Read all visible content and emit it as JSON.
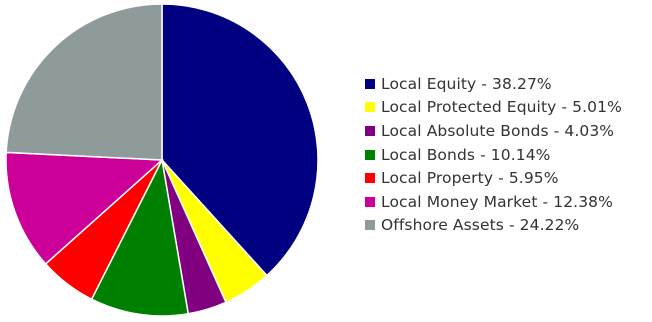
{
  "chart_data": {
    "type": "pie",
    "slices": [
      {
        "label": "Local Equity -  38.27%",
        "value": 38.27,
        "color": "#000080"
      },
      {
        "label": "Local Protected Equity - 5.01%",
        "value": 5.01,
        "color": "#ffff00"
      },
      {
        "label": "Local Absolute Bonds -  4.03%",
        "value": 4.03,
        "color": "#800080"
      },
      {
        "label": "Local Bonds -  10.14%",
        "value": 10.14,
        "color": "#008000"
      },
      {
        "label": "Local Property - 5.95%",
        "value": 5.95,
        "color": "#ff0000"
      },
      {
        "label": "Local Money Market -  12.38%",
        "value": 12.38,
        "color": "#cc0099"
      },
      {
        "label": "Offshore Assets -  24.22%",
        "value": 24.22,
        "color": "#8f9a9a"
      }
    ],
    "start_angle": "12 o'clock",
    "direction": "clockwise",
    "legend_position": "right"
  }
}
